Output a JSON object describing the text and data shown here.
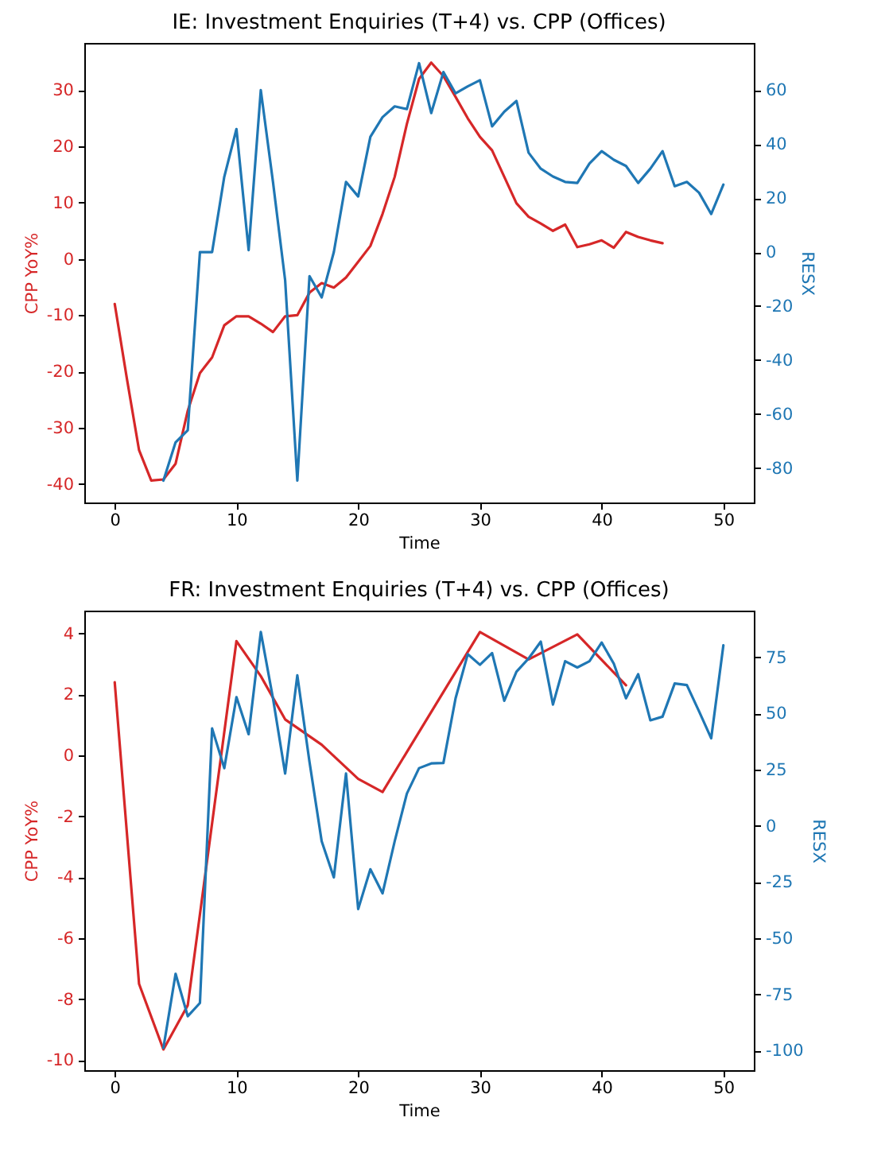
{
  "chart_data": [
    {
      "type": "line",
      "title": "IE: Investment Enquiries (T+4) vs. CPP (Offices)",
      "xlabel": "Time",
      "ylabel": "CPP YoY%",
      "y2label": "RESX",
      "xlim": [
        -2.5,
        52.5
      ],
      "xticks": [
        0,
        10,
        20,
        30,
        40,
        50
      ],
      "ylim": [
        -43.3,
        38.4
      ],
      "yticks": [
        -40,
        -30,
        -20,
        -10,
        0,
        10,
        20,
        30
      ],
      "y2lim": [
        -92.8,
        77.5
      ],
      "y2ticks": [
        -80,
        -60,
        -40,
        -20,
        0,
        20,
        40,
        60
      ],
      "grid": false,
      "series": [
        {
          "color": "#d62728",
          "x": [
            0,
            1,
            2,
            3,
            4,
            5,
            6,
            7,
            8,
            9,
            10,
            11,
            12,
            13,
            14,
            15,
            16,
            17,
            18,
            19,
            20,
            21,
            22,
            23,
            24,
            25,
            26,
            27,
            28,
            29,
            30,
            31,
            32,
            33,
            34,
            35,
            36,
            37,
            38,
            39,
            40,
            41,
            42,
            43,
            44,
            45
          ],
          "values": [
            -8,
            -21.3,
            -34,
            -39.4,
            -39.2,
            -36.4,
            -27,
            -20.3,
            -17.5,
            -11.8,
            -10.2,
            -10.2,
            -11.5,
            -13,
            -10.2,
            -10,
            -6,
            -4.3,
            -5.1,
            -3.3,
            -0.5,
            2.3,
            8,
            14.6,
            24,
            32,
            34.9,
            32.5,
            28.8,
            25,
            21.7,
            19.3,
            14.6,
            9.9,
            7.5,
            6.3,
            5,
            6.1,
            2.1,
            2.6,
            3.3,
            2,
            4.8,
            3.9,
            3.3,
            2.8
          ]
        },
        {
          "color": "#1f77b4",
          "axis": "y2",
          "x": [
            4,
            5,
            6,
            7,
            8,
            9,
            10,
            11,
            12,
            13,
            14,
            15,
            16,
            17,
            18,
            19,
            20,
            21,
            22,
            23,
            24,
            25,
            26,
            27,
            28,
            29,
            30,
            31,
            32,
            33,
            34,
            35,
            36,
            37,
            38,
            39,
            40,
            41,
            42,
            43,
            44,
            45,
            46,
            47,
            48,
            49,
            50
          ],
          "values": [
            -84.7,
            -70.5,
            -66,
            0,
            0,
            27.9,
            45.6,
            0.7,
            60,
            26,
            -10.5,
            -84.7,
            -8.9,
            -16.8,
            0,
            26,
            20.6,
            42.7,
            50,
            54,
            53,
            70,
            51.5,
            66.7,
            58.8,
            61.4,
            63.7,
            46.6,
            52,
            56,
            36.8,
            30.9,
            28,
            26,
            25.6,
            32.8,
            37.4,
            34.2,
            31.9,
            25.6,
            30.9,
            37.4,
            24.4,
            26,
            22,
            14.1,
            25
          ]
        }
      ]
    },
    {
      "type": "line",
      "title": "FR: Investment Enquiries (T+4) vs. CPP (Offices)",
      "xlabel": "Time",
      "ylabel": "CPP YoY%",
      "y2label": "RESX",
      "xlim": [
        -2.5,
        52.5
      ],
      "xticks": [
        0,
        10,
        20,
        30,
        40,
        50
      ],
      "ylim": [
        -10.33,
        4.75
      ],
      "yticks": [
        -10,
        -8,
        -6,
        -4,
        -2,
        0,
        2,
        4
      ],
      "y2lim": [
        -108.7,
        95.8
      ],
      "y2ticks": [
        -100,
        -75,
        -50,
        -25,
        0,
        25,
        50,
        75
      ],
      "grid": false,
      "series": [
        {
          "color": "#d62728",
          "x": [
            0,
            2,
            4,
            6,
            10,
            12,
            14,
            17,
            20,
            22,
            30,
            34,
            38,
            42
          ],
          "values": [
            2.4,
            -7.5,
            -9.65,
            -8.2,
            3.75,
            2.6,
            1.18,
            0.35,
            -0.77,
            -1.2,
            4.05,
            3.15,
            3.97,
            2.3
          ]
        },
        {
          "color": "#1f77b4",
          "axis": "y2",
          "x": [
            4,
            5,
            6,
            7,
            8,
            9,
            10,
            11,
            12,
            13,
            14,
            15,
            16,
            17,
            18,
            19,
            20,
            21,
            22,
            23,
            24,
            25,
            26,
            27,
            28,
            29,
            30,
            31,
            32,
            33,
            34,
            35,
            36,
            37,
            38,
            39,
            40,
            41,
            42,
            43,
            44,
            45,
            46,
            47,
            48,
            49,
            50
          ],
          "values": [
            -98.8,
            -65.8,
            -84.7,
            -78.8,
            43.4,
            25.7,
            57.3,
            40.8,
            86.3,
            56.8,
            23.3,
            67,
            28.5,
            -6.8,
            -22.9,
            23.3,
            -37,
            -19.3,
            -30,
            -6.8,
            14.4,
            25.7,
            27.8,
            28,
            56.8,
            76.4,
            71.7,
            76.9,
            55.7,
            68.6,
            74.5,
            82,
            54,
            73.3,
            70.5,
            73.3,
            81.6,
            72.2,
            56.8,
            67.5,
            47,
            48.6,
            63.4,
            62.7,
            51,
            39,
            80.4
          ]
        }
      ]
    }
  ]
}
